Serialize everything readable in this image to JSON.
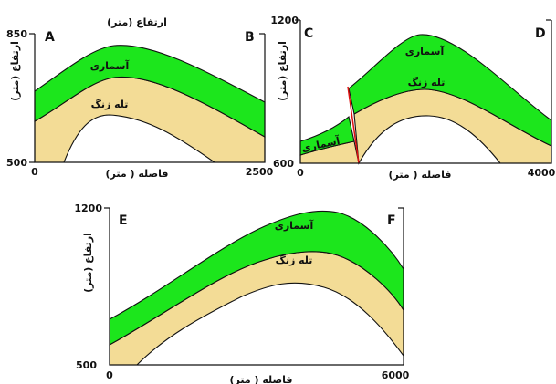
{
  "panels": {
    "left_top": {
      "corner_left": "A",
      "corner_right": "B",
      "y_title": "ارتفاع (متر)",
      "y_title_top": "ارتفاع (متر)",
      "y_max": "850",
      "y_min": "500",
      "x_min": "0",
      "x_max": "2500",
      "x_title": "فاصله ( متر)",
      "upper_layer": "آسماری",
      "lower_layer": "تله زنگ"
    },
    "right_top": {
      "corner_left": "C",
      "corner_right": "D",
      "y_title": "ارتفاع (متر)",
      "y_max": "1200",
      "y_min": "600",
      "x_min": "0",
      "x_max": "4000",
      "x_title": "فاصله ( متر)",
      "upper_layer": "آسماری",
      "upper_layer_downthrown": "آسماری",
      "lower_layer": "تله زنگ"
    },
    "bottom": {
      "corner_left": "E",
      "corner_right": "F",
      "y_title": "ارتفاع (متر)",
      "y_max": "1200",
      "y_min": "500",
      "x_min": "0",
      "x_max": "6000",
      "x_title": "فاصله ( متر)",
      "upper_layer": "آسماری",
      "lower_layer": "تله زنگ"
    }
  },
  "colors": {
    "asmari": "#1ce61c",
    "tele_zang": "#f3dc96",
    "fault": "#dd1111"
  }
}
